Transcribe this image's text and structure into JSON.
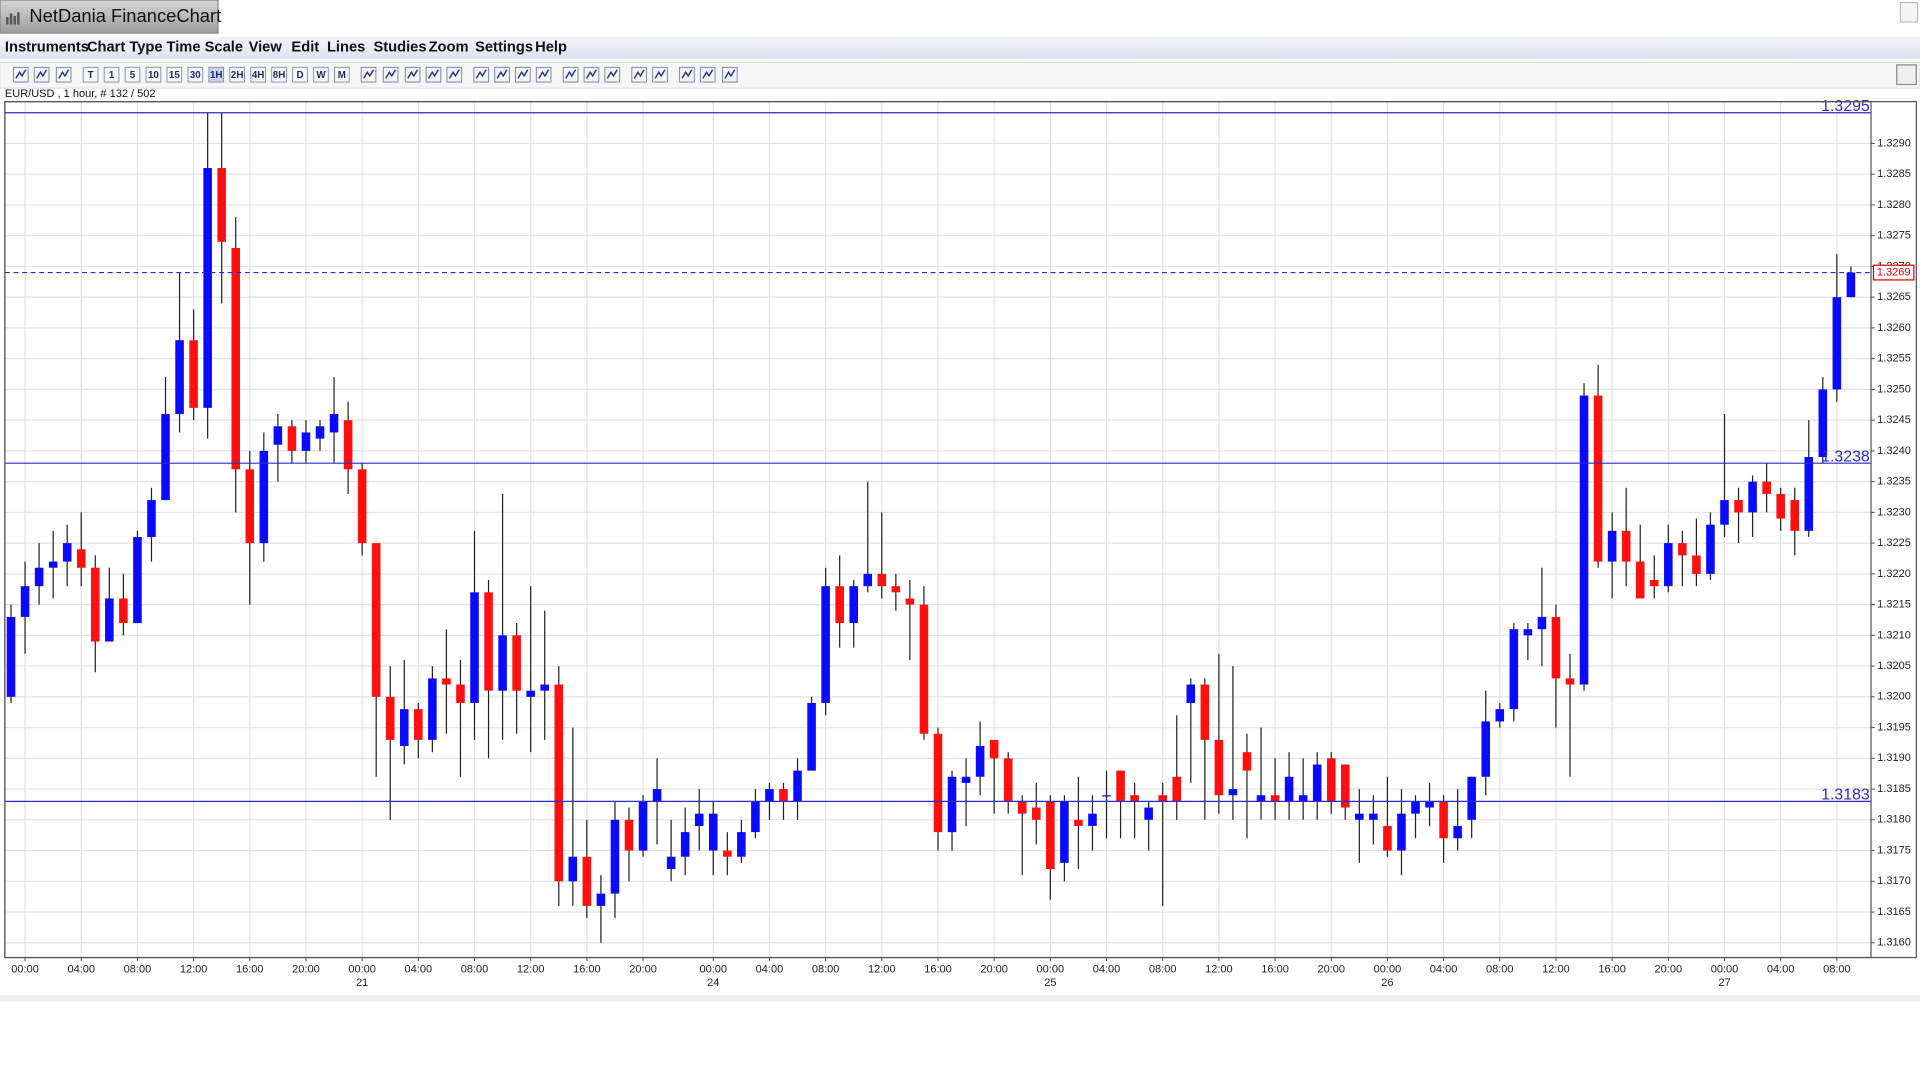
{
  "window": {
    "title": "NetDania FinanceChart",
    "menu": [
      "Instruments",
      "Chart Type",
      "Time Scale",
      "View",
      "Edit",
      "Lines",
      "Studies",
      "Zoom",
      "Settings",
      "Help"
    ],
    "timeframes": [
      "T",
      "1",
      "5",
      "10",
      "15",
      "30",
      "1H",
      "2H",
      "4H",
      "8H",
      "D",
      "W",
      "M"
    ]
  },
  "chart_data": {
    "type": "candlestick",
    "instrument_label": "EUR/USD , 1 hour, # 132 / 502",
    "categories": [
      null,
      "00:00",
      null,
      null,
      null,
      "04:00",
      null,
      null,
      null,
      "08:00",
      null,
      null,
      null,
      "12:00",
      null,
      null,
      null,
      "16:00",
      null,
      null,
      null,
      "20:00",
      null,
      null,
      null,
      "00:00",
      null,
      null,
      null,
      "04:00",
      null,
      null,
      null,
      "08:00",
      null,
      null,
      null,
      "12:00",
      null,
      null,
      null,
      "16:00",
      null,
      null,
      null,
      "20:00",
      null,
      null,
      null,
      null,
      "00:00",
      null,
      null,
      null,
      "04:00",
      null,
      null,
      null,
      "08:00",
      null,
      null,
      null,
      "12:00",
      null,
      null,
      null,
      "16:00",
      null,
      null,
      null,
      "20:00",
      null,
      null,
      null,
      "00:00",
      null,
      null,
      null,
      "04:00",
      null,
      null,
      null,
      "08:00",
      null,
      null,
      null,
      "12:00",
      null,
      null,
      null,
      "16:00",
      null,
      null,
      null,
      "20:00",
      null,
      null,
      null,
      "00:00",
      null,
      null,
      null,
      "04:00",
      null,
      null,
      null,
      "08:00",
      null,
      null,
      null,
      "12:00",
      null,
      null,
      null,
      "16:00",
      null,
      null,
      null,
      "20:00",
      null,
      null,
      null,
      "00:00",
      null,
      null,
      null,
      "04:00",
      null,
      null,
      null,
      "08:00",
      null
    ],
    "dates": [
      null,
      null,
      null,
      null,
      null,
      null,
      null,
      null,
      null,
      null,
      null,
      null,
      null,
      null,
      null,
      null,
      null,
      null,
      null,
      null,
      null,
      null,
      null,
      null,
      null,
      "21",
      null,
      null,
      null,
      null,
      null,
      null,
      null,
      null,
      null,
      null,
      null,
      null,
      null,
      null,
      null,
      null,
      null,
      null,
      null,
      null,
      null,
      null,
      null,
      null,
      "24",
      null,
      null,
      null,
      null,
      null,
      null,
      null,
      null,
      null,
      null,
      null,
      null,
      null,
      null,
      null,
      null,
      null,
      null,
      null,
      null,
      null,
      null,
      null,
      "25",
      null,
      null,
      null,
      null,
      null,
      null,
      null,
      null,
      null,
      null,
      null,
      null,
      null,
      null,
      null,
      null,
      null,
      null,
      null,
      null,
      null,
      null,
      null,
      "26",
      null,
      null,
      null,
      null,
      null,
      null,
      null,
      null,
      null,
      null,
      null,
      null,
      null,
      null,
      null,
      null,
      null,
      null,
      null,
      null,
      null,
      null,
      null,
      "27",
      null,
      null,
      null,
      null,
      null,
      null,
      null,
      null,
      null
    ],
    "open": [
      1.32,
      1.3213,
      1.3218,
      1.3221,
      1.3222,
      1.3224,
      1.3221,
      1.3209,
      1.3216,
      1.3212,
      1.3226,
      1.3232,
      1.3246,
      1.3258,
      1.3247,
      1.3286,
      1.3273,
      1.3237,
      1.3225,
      1.3241,
      1.3244,
      1.324,
      1.3242,
      1.3243,
      1.3245,
      1.3237,
      1.3225,
      1.32,
      1.3192,
      1.3198,
      1.3193,
      1.3203,
      1.3202,
      1.3199,
      1.3217,
      1.3201,
      1.321,
      1.32,
      1.3201,
      1.3202,
      1.317,
      1.3174,
      1.3166,
      1.3168,
      1.318,
      1.3175,
      1.3183,
      1.3172,
      1.3174,
      1.3179,
      1.3175,
      1.3175,
      1.3174,
      1.3178,
      1.3183,
      1.3185,
      1.3183,
      1.3188,
      1.3199,
      1.3218,
      1.3212,
      1.3218,
      1.322,
      1.3218,
      1.3216,
      1.3215,
      1.3194,
      1.3178,
      1.3186,
      1.3187,
      1.3193,
      1.319,
      1.3183,
      1.3182,
      1.3183,
      1.3173,
      1.318,
      1.3179,
      1.3184,
      1.3188,
      1.3184,
      1.318,
      1.3184,
      1.3187,
      1.3199,
      1.3202,
      1.3193,
      1.3184,
      1.3191,
      1.3183,
      1.3184,
      1.3183,
      1.3183,
      1.3183,
      1.319,
      1.3189,
      1.318,
      1.318,
      1.3179,
      1.3175,
      1.3181,
      1.3182,
      1.3183,
      1.3177,
      1.318,
      1.3187,
      1.3196,
      1.3198,
      1.321,
      1.3211,
      1.3213,
      1.3203,
      1.3202,
      1.3249,
      1.3222,
      1.3227,
      1.3222,
      1.3219,
      1.3218,
      1.3225,
      1.3223,
      1.322,
      1.3228,
      1.3232,
      1.323,
      1.3235,
      1.3233,
      1.3232,
      1.3227,
      1.3239,
      1.325,
      1.3265
    ],
    "high": [
      1.3215,
      1.3222,
      1.3225,
      1.3227,
      1.3228,
      1.323,
      1.3223,
      1.3221,
      1.322,
      1.3227,
      1.3234,
      1.3252,
      1.3269,
      1.3263,
      1.3295,
      1.3295,
      1.3278,
      1.324,
      1.3243,
      1.3246,
      1.3245,
      1.3245,
      1.3245,
      1.3252,
      1.3248,
      1.3238,
      1.3225,
      1.3205,
      1.3206,
      1.3199,
      1.3205,
      1.3211,
      1.3206,
      1.3227,
      1.3219,
      1.3233,
      1.3212,
      1.3218,
      1.3214,
      1.3205,
      1.3195,
      1.318,
      1.3171,
      1.3183,
      1.3182,
      1.3184,
      1.319,
      1.318,
      1.3182,
      1.3185,
      1.3183,
      1.3178,
      1.318,
      1.3185,
      1.3186,
      1.3186,
      1.319,
      1.32,
      1.3221,
      1.3223,
      1.3219,
      1.3235,
      1.323,
      1.322,
      1.3219,
      1.3218,
      1.3195,
      1.3188,
      1.319,
      1.3196,
      1.3193,
      1.3191,
      1.3184,
      1.3186,
      1.3184,
      1.3184,
      1.3187,
      1.3184,
      1.3188,
      1.3188,
      1.3186,
      1.3183,
      1.3186,
      1.3197,
      1.3203,
      1.3203,
      1.3207,
      1.3205,
      1.3194,
      1.3195,
      1.319,
      1.3191,
      1.319,
      1.3191,
      1.3191,
      1.3189,
      1.3185,
      1.3184,
      1.3187,
      1.3185,
      1.3184,
      1.3186,
      1.3184,
      1.3185,
      1.3187,
      1.3201,
      1.3199,
      1.3212,
      1.3212,
      1.3221,
      1.3215,
      1.3207,
      1.3251,
      1.3254,
      1.323,
      1.3234,
      1.3228,
      1.3223,
      1.3228,
      1.3227,
      1.3229,
      1.323,
      1.3246,
      1.3234,
      1.3236,
      1.3238,
      1.3234,
      1.3234,
      1.3245,
      1.3252,
      1.3272,
      1.327
    ],
    "low": [
      1.3199,
      1.3207,
      1.3215,
      1.3216,
      1.3218,
      1.3218,
      1.3204,
      1.3209,
      1.321,
      1.3212,
      1.3222,
      1.3232,
      1.3243,
      1.3245,
      1.3242,
      1.3264,
      1.323,
      1.3215,
      1.3222,
      1.3235,
      1.3238,
      1.3238,
      1.324,
      1.3238,
      1.3233,
      1.3223,
      1.3187,
      1.318,
      1.3189,
      1.319,
      1.3191,
      1.3194,
      1.3187,
      1.3193,
      1.319,
      1.3193,
      1.3194,
      1.3191,
      1.3193,
      1.3166,
      1.3166,
      1.3164,
      1.316,
      1.3164,
      1.317,
      1.3174,
      1.3176,
      1.317,
      1.3171,
      1.3175,
      1.3171,
      1.3171,
      1.3173,
      1.3177,
      1.318,
      1.318,
      1.318,
      1.3188,
      1.3197,
      1.3208,
      1.3208,
      1.3217,
      1.3216,
      1.3214,
      1.3206,
      1.3193,
      1.3175,
      1.3175,
      1.3179,
      1.3184,
      1.3181,
      1.3181,
      1.3171,
      1.3176,
      1.3167,
      1.317,
      1.3172,
      1.3175,
      1.3177,
      1.3177,
      1.3177,
      1.3175,
      1.3166,
      1.318,
      1.3186,
      1.318,
      1.3181,
      1.318,
      1.3177,
      1.318,
      1.318,
      1.318,
      1.318,
      1.318,
      1.3181,
      1.318,
      1.3173,
      1.3176,
      1.3174,
      1.3171,
      1.3177,
      1.3179,
      1.3173,
      1.3175,
      1.3177,
      1.3184,
      1.3195,
      1.3196,
      1.3206,
      1.3205,
      1.3195,
      1.3187,
      1.3201,
      1.3221,
      1.3216,
      1.3218,
      1.3216,
      1.3216,
      1.3217,
      1.3218,
      1.3218,
      1.3219,
      1.3226,
      1.3225,
      1.3226,
      1.323,
      1.3227,
      1.3223,
      1.3226,
      1.3238,
      1.3248,
      1.3265
    ],
    "close": [
      1.3213,
      1.3218,
      1.3221,
      1.3222,
      1.3225,
      1.3221,
      1.3209,
      1.3216,
      1.3212,
      1.3226,
      1.3232,
      1.3246,
      1.3258,
      1.3247,
      1.3286,
      1.3274,
      1.3237,
      1.3225,
      1.324,
      1.3244,
      1.324,
      1.3243,
      1.3244,
      1.3246,
      1.3237,
      1.3225,
      1.32,
      1.3193,
      1.3198,
      1.3193,
      1.3203,
      1.3202,
      1.3199,
      1.3217,
      1.3201,
      1.321,
      1.3201,
      1.3201,
      1.3202,
      1.317,
      1.3174,
      1.3166,
      1.3168,
      1.318,
      1.3175,
      1.3183,
      1.3185,
      1.3174,
      1.3178,
      1.3181,
      1.3181,
      1.3174,
      1.3178,
      1.3183,
      1.3185,
      1.3183,
      1.3188,
      1.3199,
      1.3218,
      1.3212,
      1.3218,
      1.322,
      1.3218,
      1.3217,
      1.3215,
      1.3194,
      1.3178,
      1.3187,
      1.3187,
      1.3192,
      1.319,
      1.3183,
      1.3181,
      1.318,
      1.3172,
      1.3183,
      1.3179,
      1.3181,
      1.3184,
      1.3183,
      1.3183,
      1.3182,
      1.3183,
      1.3183,
      1.3202,
      1.3193,
      1.3184,
      1.3185,
      1.3188,
      1.3184,
      1.3183,
      1.3187,
      1.3184,
      1.3189,
      1.3183,
      1.3182,
      1.3181,
      1.3181,
      1.3175,
      1.3181,
      1.3183,
      1.3183,
      1.3177,
      1.3179,
      1.3187,
      1.3196,
      1.3198,
      1.3211,
      1.3211,
      1.3213,
      1.3203,
      1.3202,
      1.3249,
      1.3222,
      1.3227,
      1.3222,
      1.3216,
      1.3218,
      1.3225,
      1.3223,
      1.322,
      1.3228,
      1.3232,
      1.323,
      1.3235,
      1.3233,
      1.3229,
      1.3227,
      1.3239,
      1.325,
      1.3265,
      1.3269
    ],
    "up_color": "#0a0aff",
    "down_color": "#ff1010",
    "ylim": [
      1.31576,
      1.32968
    ],
    "yticks": [
      {
        "value": 1.316,
        "label": "1.3160"
      },
      {
        "value": 1.3165,
        "label": "1.3165"
      },
      {
        "value": 1.317,
        "label": "1.3170"
      },
      {
        "value": 1.3175,
        "label": "1.3175"
      },
      {
        "value": 1.318,
        "label": "1.3180"
      },
      {
        "value": 1.3185,
        "label": "1.3185"
      },
      {
        "value": 1.319,
        "label": "1.3190"
      },
      {
        "value": 1.3195,
        "label": "1.3195"
      },
      {
        "value": 1.32,
        "label": "1.3200"
      },
      {
        "value": 1.3205,
        "label": "1.3205"
      },
      {
        "value": 1.321,
        "label": "1.3210"
      },
      {
        "value": 1.3215,
        "label": "1.3215"
      },
      {
        "value": 1.322,
        "label": "1.3220"
      },
      {
        "value": 1.3225,
        "label": "1.3225"
      },
      {
        "value": 1.323,
        "label": "1.3230"
      },
      {
        "value": 1.3235,
        "label": "1.3235"
      },
      {
        "value": 1.324,
        "label": "1.3240"
      },
      {
        "value": 1.3245,
        "label": "1.3245"
      },
      {
        "value": 1.325,
        "label": "1.3250"
      },
      {
        "value": 1.3255,
        "label": "1.3255"
      },
      {
        "value": 1.326,
        "label": "1.3260"
      },
      {
        "value": 1.3265,
        "label": "1.3265"
      },
      {
        "value": 1.327,
        "label": "1.3270"
      },
      {
        "value": 1.3275,
        "label": "1.3275"
      },
      {
        "value": 1.328,
        "label": "1.3280"
      },
      {
        "value": 1.3285,
        "label": "1.3285"
      },
      {
        "value": 1.329,
        "label": "1.3290"
      }
    ],
    "grid": true,
    "level_color": "#2a2acc",
    "levels": [
      {
        "value": 1.3295,
        "label": "1.3295"
      },
      {
        "value": 1.3238,
        "label": "1.3238"
      },
      {
        "value": 1.3183,
        "label": "1.3183"
      }
    ],
    "last_price": {
      "value": 1.3269,
      "label": "1.3269",
      "color": "#e00000"
    }
  }
}
